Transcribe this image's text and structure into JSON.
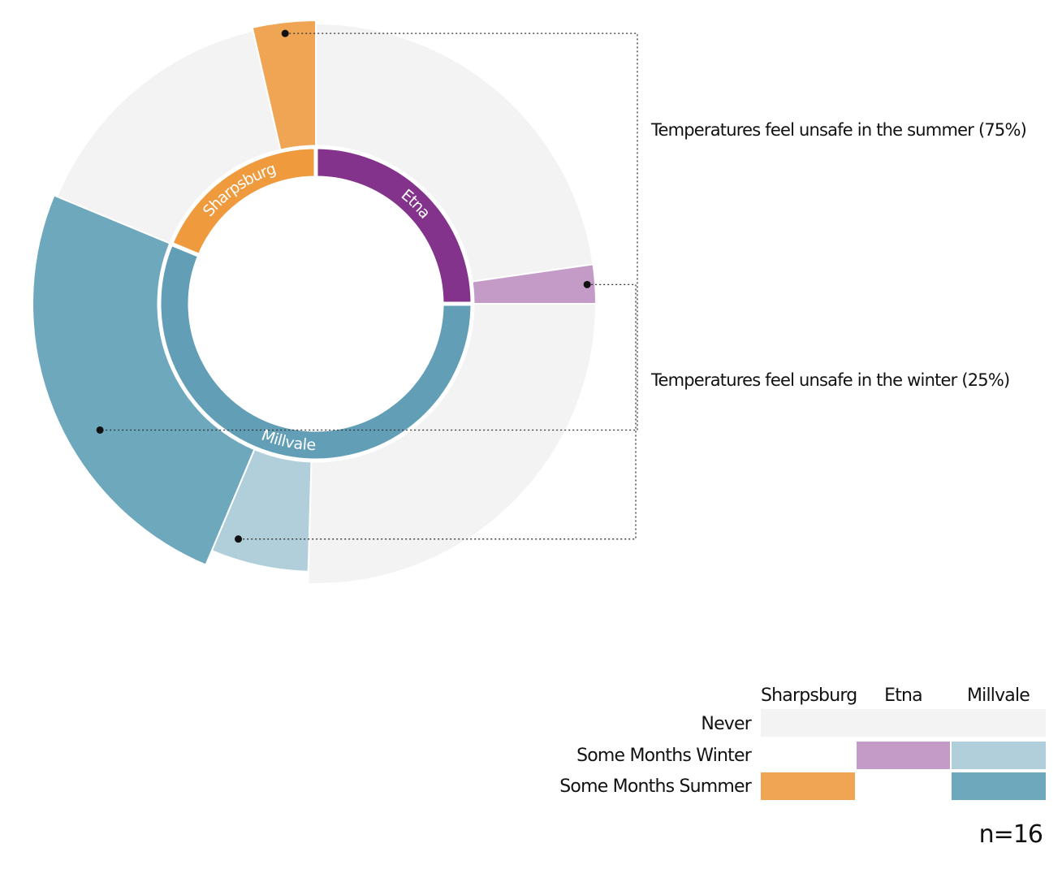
{
  "chart_data": {
    "type": "sunburst-donut",
    "inner_ring": [
      {
        "name": "Sharpsburg",
        "share": 0.1875,
        "color": "#EE9A3D"
      },
      {
        "name": "Etna",
        "share": 0.25,
        "color": "#83338B"
      },
      {
        "name": "Millvale",
        "share": 0.5625,
        "color": "#629FB7"
      }
    ],
    "outer_ring": [
      {
        "town": "Etna",
        "category": "Never",
        "share": 0.2275,
        "color": "#F3F3F3"
      },
      {
        "town": "Etna",
        "category": "Some Months Winter",
        "share": 0.0225,
        "color": "#C49AC7"
      },
      {
        "town": "Millvale",
        "category": "Never",
        "share": 0.2545,
        "color": "#F3F3F3"
      },
      {
        "town": "Millvale",
        "category": "Some Months Winter",
        "share": 0.059,
        "color": "#B0CFDA"
      },
      {
        "town": "Millvale",
        "category": "Some Months Summer",
        "share": 0.249,
        "color": "#6EA8BD"
      },
      {
        "town": "Sharpsburg",
        "category": "Never",
        "share": 0.1515,
        "color": "#F3F3F3"
      },
      {
        "town": "Sharpsburg",
        "category": "Some Months Summer",
        "share": 0.036,
        "color": "#EFA553"
      }
    ],
    "annotations": [
      "Temperatures feel unsafe in the summer (75%)",
      "Temperatures feel unsafe in the winter (25%)"
    ],
    "legend": {
      "columns": [
        "Sharpsburg",
        "Etna",
        "Millvale"
      ],
      "rows": [
        {
          "label": "Never",
          "colors": [
            "#F3F3F3",
            "#F3F3F3",
            "#F3F3F3"
          ]
        },
        {
          "label": "Some Months Winter",
          "colors": [
            null,
            "#C49AC7",
            "#B0CFDA"
          ]
        },
        {
          "label": "Some Months Summer",
          "colors": [
            "#EFA553",
            null,
            "#6EA8BD"
          ]
        }
      ]
    },
    "sample_size": "n=16"
  }
}
